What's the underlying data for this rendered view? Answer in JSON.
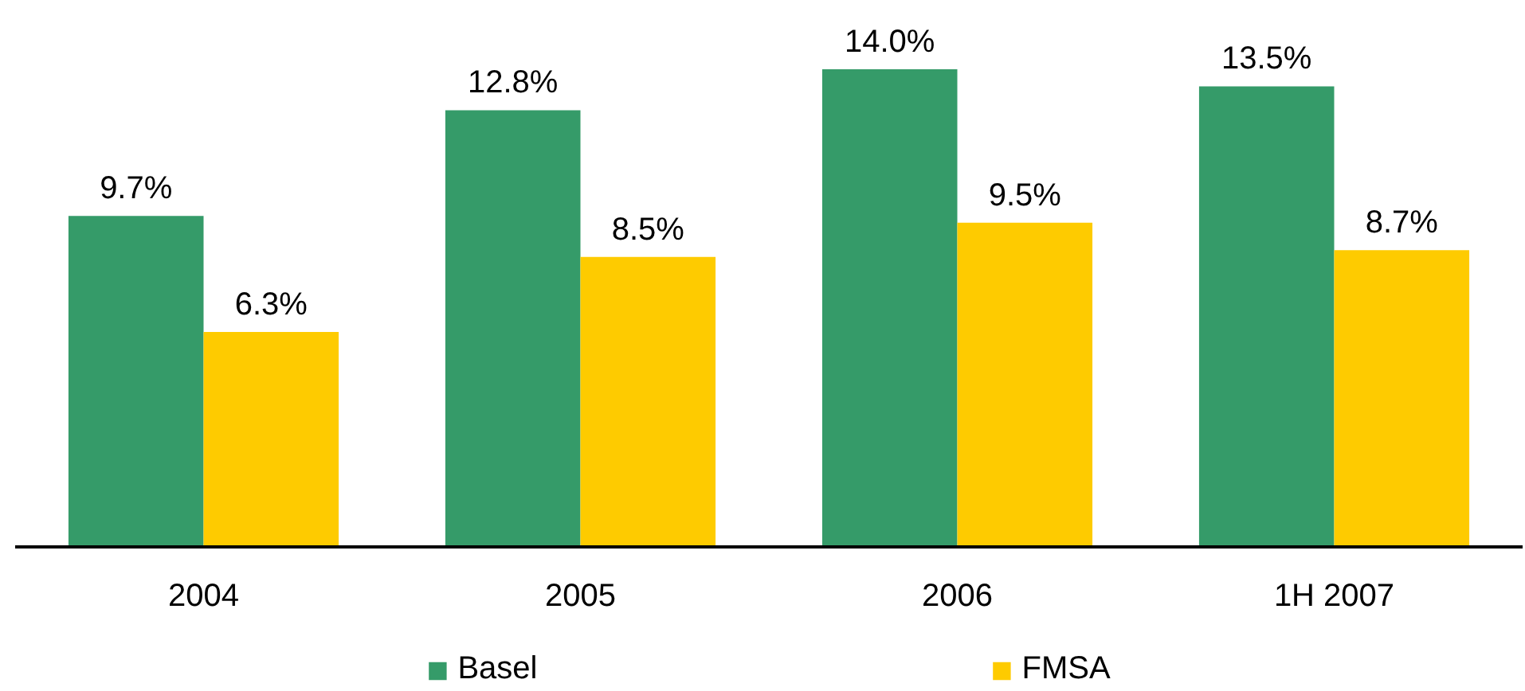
{
  "chart_data": {
    "type": "bar",
    "categories": [
      "2004",
      "2005",
      "2006",
      "1H 2007"
    ],
    "series": [
      {
        "name": "Basel",
        "color": "#359b69",
        "values": [
          9.7,
          12.8,
          14.0,
          13.5
        ],
        "value_labels": [
          "9.7%",
          "12.8%",
          "14.0%",
          "13.5%"
        ]
      },
      {
        "name": "FMSA",
        "color": "#fecb00",
        "values": [
          6.3,
          8.5,
          9.5,
          8.7
        ],
        "value_labels": [
          "6.3%",
          "8.5%",
          "9.5%",
          "8.7%"
        ]
      }
    ],
    "legend": "bottom",
    "tick_labels": "x"
  }
}
